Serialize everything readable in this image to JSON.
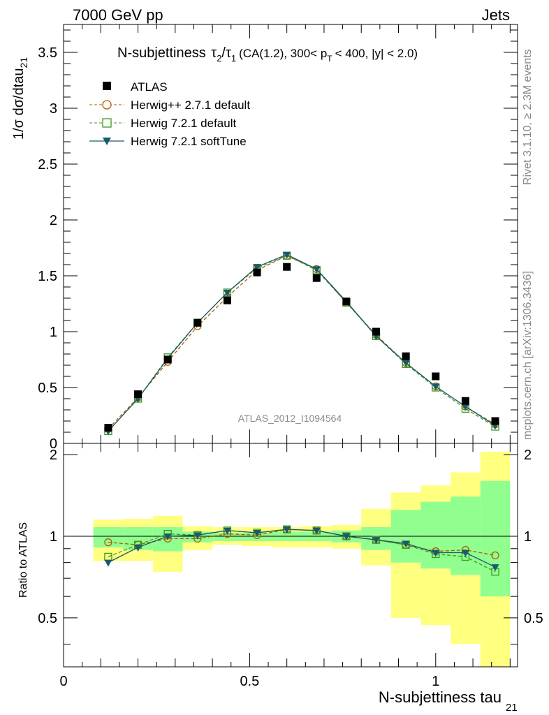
{
  "header": {
    "left": "7000 GeV pp",
    "right": "Jets"
  },
  "side": {
    "rivet": "Rivet 3.1.10, ≥ 2.3M events",
    "mcplots": "mcplots.cern.ch [arXiv:1306.3436]"
  },
  "chart_data": {
    "type": "line",
    "title": "N-subjettiness τ₂/τ₁ (CA(1.2), 300< p_T < 400, |y| < 2.0)",
    "title_parts": {
      "main": "N-subjettiness",
      "tau": "τ",
      "sub2": "2",
      "slash": "/",
      "sub1": "1",
      "rest1": "(CA(1.2), 300< p",
      "subT": "T",
      "rest2": "< 400, |y| < 2.0)"
    },
    "ylabel_main": "1/σ dσ/dtau",
    "ylabel_sub": "21",
    "ratio_ylabel": "Ratio to ATLAS",
    "xlabel_main": "N-subjettiness tau",
    "xlabel_sub": "21",
    "watermark": "ATLAS_2012_I1094564",
    "xlim": [
      0,
      1.22
    ],
    "ylim": [
      0,
      3.75
    ],
    "ratio_ylim": [
      0.33,
      2.2
    ],
    "x": [
      0.12,
      0.2,
      0.28,
      0.36,
      0.44,
      0.52,
      0.6,
      0.68,
      0.76,
      0.84,
      0.92,
      1.0,
      1.08,
      1.16
    ],
    "x_ticks": [
      "0",
      "0.5",
      "1"
    ],
    "x_tick_values": [
      0,
      0.5,
      1
    ],
    "y_ticks": [
      "0",
      "0.5",
      "1",
      "1.5",
      "2",
      "2.5",
      "3",
      "3.5"
    ],
    "y_tick_values": [
      0,
      0.5,
      1,
      1.5,
      2,
      2.5,
      3,
      3.5
    ],
    "ratio_ticks": [
      "0.5",
      "1",
      "2"
    ],
    "ratio_tick_values": [
      0.5,
      1,
      2
    ],
    "series": [
      {
        "name": "ATLAS",
        "color": "#000000",
        "marker": "square",
        "values": [
          0.14,
          0.44,
          0.75,
          1.08,
          1.28,
          1.53,
          1.58,
          1.48,
          1.27,
          1.0,
          0.78,
          0.6,
          0.38,
          0.2
        ]
      },
      {
        "name": "Herwig++ 2.7.1 default",
        "color": "#b35a00",
        "marker": "open-circle",
        "dashed": true,
        "values": [
          0.13,
          0.41,
          0.73,
          1.05,
          1.31,
          1.55,
          1.68,
          1.56,
          1.26,
          0.97,
          0.72,
          0.51,
          0.33,
          0.17
        ],
        "ratio": [
          0.95,
          0.93,
          0.98,
          0.98,
          1.02,
          1.01,
          1.06,
          1.05,
          1.0,
          0.97,
          0.93,
          0.88,
          0.89,
          0.85
        ]
      },
      {
        "name": "Herwig 7.2.1 default",
        "color": "#3c9a1e",
        "marker": "open-square",
        "dashed": true,
        "values": [
          0.11,
          0.4,
          0.77,
          1.08,
          1.35,
          1.57,
          1.68,
          1.55,
          1.26,
          0.96,
          0.71,
          0.5,
          0.31,
          0.15
        ],
        "ratio": [
          0.84,
          0.93,
          1.02,
          1.01,
          1.05,
          1.03,
          1.06,
          1.05,
          1.0,
          0.97,
          0.93,
          0.86,
          0.84,
          0.74
        ]
      },
      {
        "name": "Herwig 7.2.1 softTune",
        "color": "#1a5a6e",
        "marker": "down-triangle",
        "values": [
          0.11,
          0.4,
          0.76,
          1.08,
          1.35,
          1.58,
          1.69,
          1.56,
          1.27,
          0.96,
          0.72,
          0.51,
          0.33,
          0.16
        ],
        "ratio": [
          0.8,
          0.91,
          1.0,
          1.01,
          1.05,
          1.03,
          1.06,
          1.05,
          1.0,
          0.97,
          0.94,
          0.87,
          0.87,
          0.77
        ]
      }
    ],
    "bands": {
      "edges": [
        0.08,
        0.16,
        0.24,
        0.32,
        0.4,
        0.48,
        0.56,
        0.64,
        0.72,
        0.8,
        0.88,
        0.96,
        1.04,
        1.12,
        1.2
      ],
      "yellow_lo": [
        0.81,
        0.81,
        0.74,
        0.89,
        0.93,
        0.92,
        0.91,
        0.91,
        0.9,
        0.78,
        0.5,
        0.47,
        0.4,
        0.3
      ],
      "yellow_hi": [
        1.15,
        1.16,
        1.19,
        1.09,
        1.08,
        1.08,
        1.08,
        1.09,
        1.1,
        1.26,
        1.45,
        1.54,
        1.72,
        2.05
      ],
      "green_lo": [
        0.91,
        0.89,
        0.88,
        0.95,
        0.96,
        0.96,
        0.96,
        0.96,
        0.95,
        0.89,
        0.8,
        0.76,
        0.72,
        0.6
      ],
      "green_hi": [
        1.08,
        1.08,
        1.08,
        1.04,
        1.03,
        1.03,
        1.04,
        1.04,
        1.05,
        1.08,
        1.25,
        1.34,
        1.4,
        1.6
      ],
      "yellow_color": "#ffff80",
      "green_color": "#90ff90"
    }
  }
}
